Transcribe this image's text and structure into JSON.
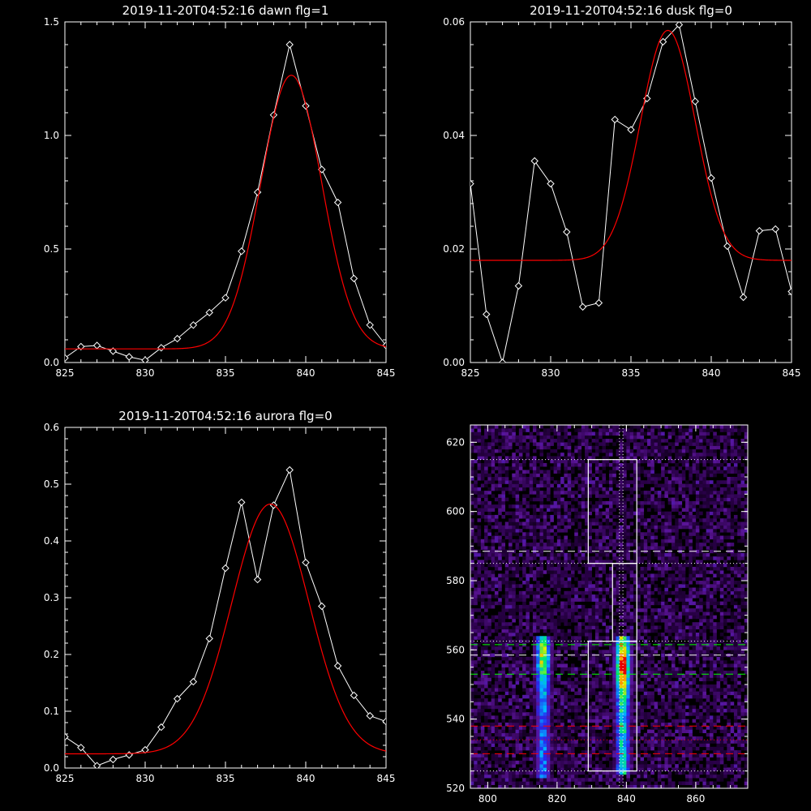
{
  "chart_data": [
    {
      "type": "line",
      "title": "2019-11-20T04:52:16 dawn flg=1",
      "xlim": [
        825,
        845
      ],
      "ylim": [
        0,
        1.5
      ],
      "xticks": [
        "825",
        "830",
        "835",
        "840",
        "845"
      ],
      "yticks": [
        "0.0",
        "0.5",
        "1.0",
        "1.5"
      ],
      "series": [
        {
          "color": "#ffffff",
          "marker": "diamond",
          "x": [
            825,
            826,
            827,
            828,
            829,
            830,
            831,
            832,
            833,
            834,
            835,
            836,
            837,
            838,
            839,
            840,
            841,
            842,
            843,
            844,
            845
          ],
          "y": [
            0.02,
            0.07,
            0.075,
            0.05,
            0.025,
            0.01,
            0.065,
            0.105,
            0.165,
            0.22,
            0.285,
            0.49,
            0.75,
            1.09,
            1.4,
            1.13,
            0.85,
            0.705,
            0.37,
            0.165,
            0.075
          ]
        },
        {
          "color": "#ff0000",
          "fit": "gaussian",
          "amplitude": 1.205,
          "center": 839.1,
          "sigma": 1.9,
          "baseline": 0.06
        }
      ]
    },
    {
      "type": "line",
      "title": "2019-11-20T04:52:16 dusk flg=0",
      "xlim": [
        825,
        845
      ],
      "ylim": [
        0,
        0.06
      ],
      "xticks": [
        "825",
        "830",
        "835",
        "840",
        "845"
      ],
      "yticks": [
        "0.00",
        "0.02",
        "0.04",
        "0.06"
      ],
      "series": [
        {
          "color": "#ffffff",
          "marker": "diamond",
          "x": [
            825,
            826,
            827,
            828,
            829,
            830,
            831,
            832,
            833,
            834,
            835,
            836,
            837,
            838,
            839,
            840,
            841,
            842,
            843,
            844,
            845
          ],
          "y": [
            0.0315,
            0.0085,
            0.0,
            0.0135,
            0.0355,
            0.0315,
            0.023,
            0.0098,
            0.0105,
            0.0428,
            0.041,
            0.0465,
            0.0565,
            0.0595,
            0.046,
            0.0325,
            0.0205,
            0.0115,
            0.0232,
            0.0235,
            0.0125
          ]
        },
        {
          "color": "#ff0000",
          "fit": "gaussian",
          "amplitude": 0.0405,
          "center": 837.3,
          "sigma": 1.7,
          "baseline": 0.018
        }
      ]
    },
    {
      "type": "line",
      "title": "2019-11-20T04:52:16 aurora flg=0",
      "xlim": [
        825,
        845
      ],
      "ylim": [
        0,
        0.6
      ],
      "xticks": [
        "825",
        "830",
        "835",
        "840",
        "845"
      ],
      "yticks": [
        "0.0",
        "0.1",
        "0.2",
        "0.3",
        "0.4",
        "0.5",
        "0.6"
      ],
      "series": [
        {
          "color": "#ffffff",
          "marker": "diamond",
          "x": [
            825,
            826,
            827,
            828,
            829,
            830,
            831,
            832,
            833,
            834,
            835,
            836,
            837,
            838,
            839,
            840,
            841,
            842,
            843,
            844,
            845
          ],
          "y": [
            0.055,
            0.036,
            0.004,
            0.015,
            0.023,
            0.032,
            0.072,
            0.122,
            0.152,
            0.228,
            0.352,
            0.468,
            0.332,
            0.463,
            0.525,
            0.362,
            0.285,
            0.18,
            0.128,
            0.092,
            0.082
          ]
        },
        {
          "color": "#ff0000",
          "fit": "gaussian",
          "amplitude": 0.44,
          "center": 837.8,
          "sigma": 2.4,
          "baseline": 0.025
        }
      ]
    },
    {
      "type": "heatmap",
      "title": "",
      "xlim": [
        795,
        875
      ],
      "ylim": [
        520,
        625
      ],
      "xticks": [
        "800",
        "820",
        "840",
        "860"
      ],
      "yticks": [
        "520",
        "540",
        "560",
        "580",
        "600",
        "620"
      ],
      "colormap": "rainbow on black",
      "bright_columns": [
        {
          "x_center": 816,
          "y_range": [
            523,
            563
          ],
          "peak_y": 557
        },
        {
          "x_center": 839,
          "y_range": [
            524,
            563
          ],
          "peak_y": 555
        }
      ],
      "boxes": [
        {
          "x": [
            829,
            843
          ],
          "y": [
            525,
            562.5
          ]
        },
        {
          "x": [
            829,
            843
          ],
          "y": [
            585,
            615
          ]
        },
        {
          "x": [
            836,
            843
          ],
          "y": [
            562.5,
            585
          ]
        }
      ],
      "hlines": [
        {
          "y": 615,
          "color": "#ffffff",
          "style": "dotted"
        },
        {
          "y": 588.5,
          "color": "#ffffff",
          "style": "dashed"
        },
        {
          "y": 585,
          "color": "#ffffff",
          "style": "dotted"
        },
        {
          "y": 562.5,
          "color": "#ffffff",
          "style": "dotted"
        },
        {
          "y": 561.5,
          "color": "#00ff00",
          "style": "dashed"
        },
        {
          "y": 558.5,
          "color": "#ffffff",
          "style": "dashed"
        },
        {
          "y": 553,
          "color": "#00ff00",
          "style": "dashed"
        },
        {
          "y": 538,
          "color": "#ff0000",
          "style": "dashed"
        },
        {
          "y": 534,
          "color": "#ff0000",
          "style": "dotted"
        },
        {
          "y": 530,
          "color": "#ff0000",
          "style": "dashed"
        },
        {
          "y": 525,
          "color": "#ffffff",
          "style": "dotted"
        }
      ],
      "vlines": [
        {
          "x": 838,
          "color": "#ffffff",
          "style": "dotted"
        },
        {
          "x": 839,
          "color": "#ffffff",
          "style": "dotted"
        }
      ]
    }
  ]
}
